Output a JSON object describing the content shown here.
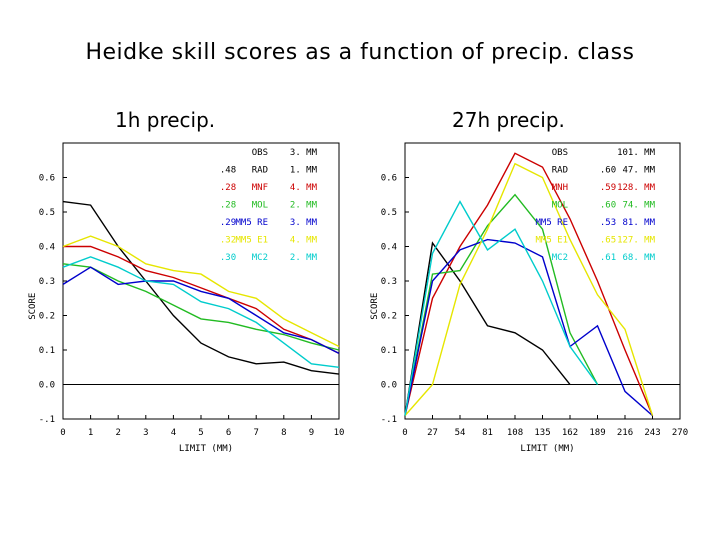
{
  "title": "Heidke skill scores as a function of precip. class",
  "chart_data": [
    {
      "type": "line",
      "title": "1h precip.",
      "xlabel": "LIMIT (MM)",
      "ylabel": "SCORE",
      "categories": [
        "0",
        "1",
        "2",
        "3",
        "4",
        "5",
        "6",
        "7",
        "8",
        "9",
        "10"
      ],
      "xlim": [
        0,
        10
      ],
      "ylim": [
        -0.1,
        0.7
      ],
      "yticks": [
        -0.1,
        0.0,
        0.1,
        0.2,
        0.3,
        0.4,
        0.5,
        0.6
      ],
      "ytick_labels": [
        "-.1",
        "0.0",
        "0.1",
        "0.2",
        "0.3",
        "0.4",
        "0.5",
        "0.6"
      ],
      "zero_line": true,
      "legend": [
        {
          "name": "OBS",
          "stat": "",
          "value": "3. MM",
          "color": "#000000"
        },
        {
          "name": "RAD",
          "stat": ".48",
          "value": "1. MM",
          "color": "#000000"
        },
        {
          "name": "MNF",
          "stat": ".28",
          "value": "4. MM",
          "color": "#cc0000"
        },
        {
          "name": "MOL",
          "stat": ".28",
          "value": "2. MM",
          "color": "#22bb22"
        },
        {
          "name": "MM5 RE",
          "stat": ".29",
          "value": "3. MM",
          "color": "#0000cc"
        },
        {
          "name": "MM5 E1",
          "stat": ".32",
          "value": "4. MM",
          "color": "#e6e600"
        },
        {
          "name": "MC2",
          "stat": ".30",
          "value": "2. MM",
          "color": "#00cccc"
        }
      ],
      "series": [
        {
          "name": "RAD",
          "color": "#000000",
          "x": [
            0,
            1,
            2,
            3,
            4,
            5,
            6,
            7,
            8,
            9,
            10
          ],
          "y": [
            0.53,
            0.52,
            0.4,
            0.3,
            0.2,
            0.12,
            0.08,
            0.06,
            0.065,
            0.04,
            0.03
          ]
        },
        {
          "name": "MNF",
          "color": "#cc0000",
          "x": [
            0,
            1,
            2,
            3,
            4,
            5,
            6,
            7,
            8,
            9,
            10
          ],
          "y": [
            0.4,
            0.4,
            0.37,
            0.33,
            0.31,
            0.28,
            0.25,
            0.22,
            0.16,
            0.13,
            0.09
          ]
        },
        {
          "name": "MOL",
          "color": "#22bb22",
          "x": [
            0,
            1,
            2,
            3,
            4,
            5,
            6,
            7,
            8,
            9,
            10
          ],
          "y": [
            0.35,
            0.34,
            0.3,
            0.27,
            0.23,
            0.19,
            0.18,
            0.16,
            0.145,
            0.12,
            0.1
          ]
        },
        {
          "name": "MM5 RE",
          "color": "#0000cc",
          "x": [
            0,
            1,
            2,
            3,
            4,
            5,
            6,
            7,
            8,
            9,
            10
          ],
          "y": [
            0.29,
            0.34,
            0.29,
            0.3,
            0.3,
            0.27,
            0.25,
            0.2,
            0.15,
            0.13,
            0.09
          ]
        },
        {
          "name": "MM5 E1",
          "color": "#e6e600",
          "x": [
            0,
            1,
            2,
            3,
            4,
            5,
            6,
            7,
            8,
            9,
            10
          ],
          "y": [
            0.4,
            0.43,
            0.4,
            0.35,
            0.33,
            0.32,
            0.27,
            0.25,
            0.19,
            0.15,
            0.11
          ]
        },
        {
          "name": "MC2",
          "color": "#00cccc",
          "x": [
            0,
            1,
            2,
            3,
            4,
            5,
            6,
            7,
            8,
            9,
            10
          ],
          "y": [
            0.34,
            0.37,
            0.34,
            0.3,
            0.29,
            0.24,
            0.22,
            0.18,
            0.12,
            0.06,
            0.05
          ]
        }
      ]
    },
    {
      "type": "line",
      "title": "27h precip.",
      "xlabel": "LIMIT (MM)",
      "ylabel": "SCORE",
      "categories": [
        "0",
        "27",
        "54",
        "81",
        "108",
        "135",
        "162",
        "189",
        "216",
        "243",
        "270"
      ],
      "xlim": [
        0,
        270
      ],
      "ylim": [
        -0.1,
        0.7
      ],
      "yticks": [
        -0.1,
        0.0,
        0.1,
        0.2,
        0.3,
        0.4,
        0.5,
        0.6
      ],
      "ytick_labels": [
        "-.1",
        "0.0",
        "0.1",
        "0.2",
        "0.3",
        "0.4",
        "0.5",
        "0.6"
      ],
      "zero_line": true,
      "legend": [
        {
          "name": "OBS",
          "stat": "",
          "value": "101. MM",
          "color": "#000000"
        },
        {
          "name": "RAD",
          "stat": ".60",
          "value": "47. MM",
          "color": "#000000"
        },
        {
          "name": "MNH",
          "stat": ".59",
          "value": "128. MM",
          "color": "#cc0000"
        },
        {
          "name": "MOL",
          "stat": ".60",
          "value": "74. MM",
          "color": "#22bb22"
        },
        {
          "name": "MM5 RE",
          "stat": ".53",
          "value": "81. MM",
          "color": "#0000cc"
        },
        {
          "name": "MM5 E1",
          "stat": ".65",
          "value": "127. MM",
          "color": "#e6e600"
        },
        {
          "name": "MC2",
          "stat": ".61",
          "value": "68. MM",
          "color": "#00cccc"
        }
      ],
      "series": [
        {
          "name": "RAD",
          "color": "#000000",
          "x": [
            0,
            27,
            54,
            81,
            108,
            135,
            162
          ],
          "y": [
            -0.09,
            0.41,
            0.3,
            0.17,
            0.15,
            0.1,
            0.0
          ]
        },
        {
          "name": "MNH",
          "color": "#cc0000",
          "x": [
            0,
            27,
            54,
            81,
            108,
            135,
            162,
            189,
            216,
            243
          ],
          "y": [
            -0.09,
            0.25,
            0.4,
            0.52,
            0.67,
            0.63,
            0.48,
            0.3,
            0.1,
            -0.09
          ]
        },
        {
          "name": "MOL",
          "color": "#22bb22",
          "x": [
            0,
            27,
            54,
            81,
            108,
            135,
            162,
            189
          ],
          "y": [
            -0.09,
            0.32,
            0.33,
            0.46,
            0.55,
            0.45,
            0.15,
            0.0
          ]
        },
        {
          "name": "MM5 RE",
          "color": "#0000cc",
          "x": [
            0,
            27,
            54,
            81,
            108,
            135,
            162,
            189,
            216,
            243
          ],
          "y": [
            -0.09,
            0.3,
            0.39,
            0.42,
            0.41,
            0.37,
            0.11,
            0.17,
            -0.02,
            -0.09
          ]
        },
        {
          "name": "MM5 E1",
          "color": "#e6e600",
          "x": [
            0,
            27,
            54,
            81,
            108,
            135,
            162,
            189,
            216,
            243
          ],
          "y": [
            -0.09,
            0.0,
            0.29,
            0.45,
            0.64,
            0.6,
            0.42,
            0.26,
            0.16,
            -0.09
          ]
        },
        {
          "name": "MC2",
          "color": "#00cccc",
          "x": [
            0,
            27,
            54,
            81,
            108,
            135,
            162,
            189
          ],
          "y": [
            -0.09,
            0.38,
            0.53,
            0.39,
            0.45,
            0.3,
            0.11,
            0.0
          ]
        }
      ]
    }
  ]
}
